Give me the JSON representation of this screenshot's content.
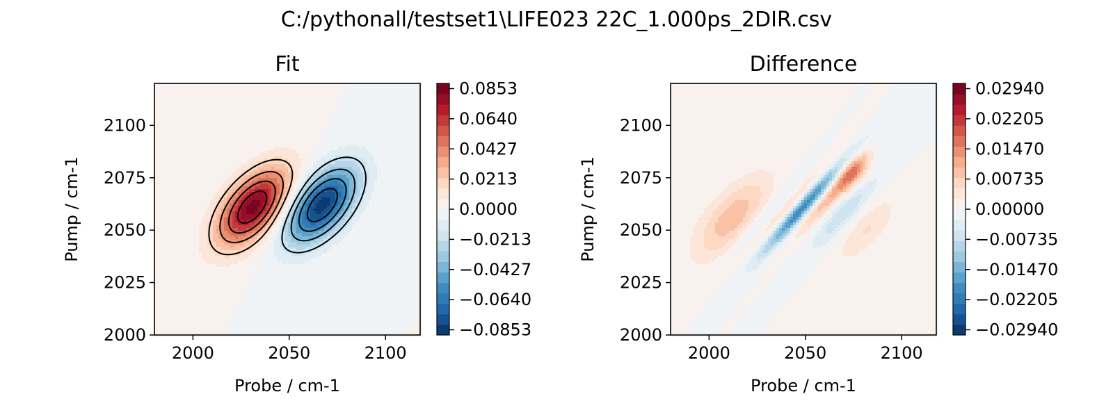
{
  "figure_title": "C:/pythonall/testset1\\LIFE023 22C_1.000ps_2DIR.csv",
  "colors": {
    "colormap": "RdBu_r",
    "contour_line": "#000000",
    "axis": "#000000"
  },
  "chart_data": [
    {
      "type": "heatmap",
      "subtype": "filled-contour",
      "title": "Fit",
      "xlabel": "Probe / cm-1",
      "ylabel": "Pump / cm-1",
      "xlim": [
        1980,
        2118
      ],
      "ylim": [
        2000,
        2120
      ],
      "x_ticks": [
        2000,
        2050,
        2100
      ],
      "y_ticks": [
        2000,
        2025,
        2050,
        2075,
        2100
      ],
      "contour_lines": true,
      "colorbar": {
        "ticks": [
          "0.0853",
          "0.0640",
          "0.0427",
          "0.0213",
          "0.0000",
          "−0.0213",
          "−0.0427",
          "−0.0640",
          "−0.0853"
        ],
        "range": [
          -0.0853,
          0.0853
        ]
      },
      "features": [
        {
          "sign": "positive",
          "center_probe": 2031,
          "center_pump": 2061,
          "peak": 0.082
        },
        {
          "sign": "negative",
          "center_probe": 2067,
          "center_pump": 2062,
          "peak": -0.083
        }
      ]
    },
    {
      "type": "heatmap",
      "subtype": "filled-contour",
      "title": "Difference",
      "xlabel": "Probe / cm-1",
      "ylabel": "Pump / cm-1",
      "xlim": [
        1980,
        2118
      ],
      "ylim": [
        2000,
        2120
      ],
      "x_ticks": [
        2000,
        2050,
        2100
      ],
      "y_ticks": [
        2000,
        2025,
        2050,
        2075,
        2100
      ],
      "contour_lines": false,
      "colorbar": {
        "ticks": [
          "0.02940",
          "0.02205",
          "0.01470",
          "0.00735",
          "0.00000",
          "−0.00735",
          "−0.01470",
          "−0.02205",
          "−0.02940"
        ],
        "range": [
          -0.0294,
          0.0294
        ]
      },
      "features": [
        {
          "sign": "positive",
          "center_probe": 2012,
          "center_pump": 2056,
          "peak": 0.009
        },
        {
          "sign": "negative",
          "center_probe": 2050,
          "center_pump": 2062,
          "peak": -0.025
        },
        {
          "sign": "positive",
          "center_probe": 2075,
          "center_pump": 2078,
          "peak": 0.012
        }
      ]
    }
  ]
}
